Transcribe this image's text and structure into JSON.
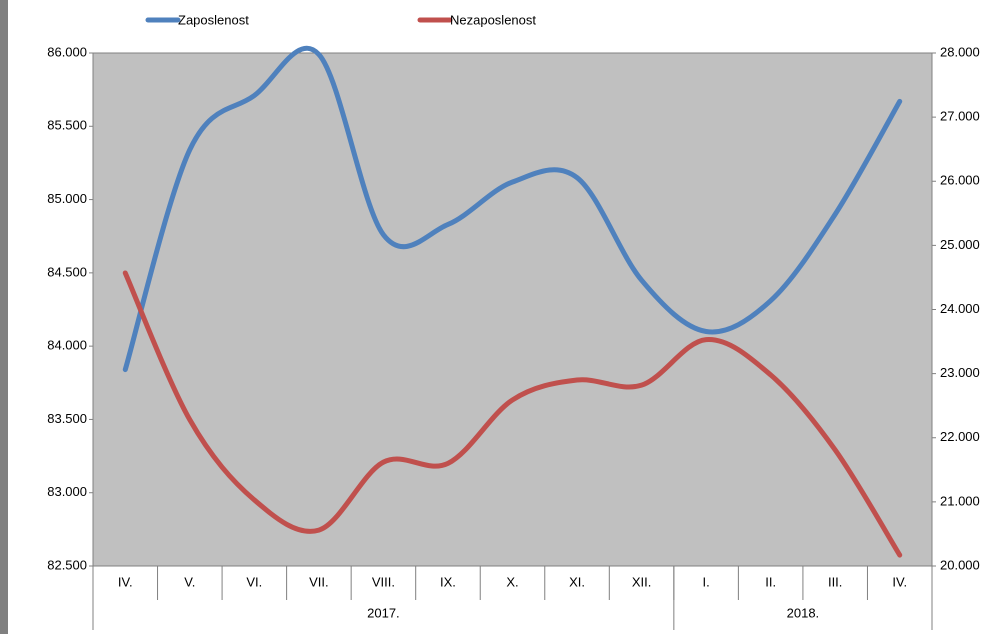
{
  "chart_data": {
    "type": "line",
    "groups": [
      {
        "label": "2017.",
        "categories": [
          "IV.",
          "V.",
          "VI.",
          "VII.",
          "VIII.",
          "IX.",
          "X.",
          "XI.",
          "XII."
        ]
      },
      {
        "label": "2018.",
        "categories": [
          "I.",
          "II.",
          "III.",
          "IV."
        ]
      }
    ],
    "series": [
      {
        "name": "Zaposlenost",
        "color": "#4f81bd",
        "axis": "y",
        "values": [
          83840,
          85340,
          85710,
          85990,
          84760,
          84830,
          85120,
          85150,
          84450,
          84100,
          84310,
          84900,
          85670
        ]
      },
      {
        "name": "Nezaposlenost",
        "color": "#c0504d",
        "axis": "y2",
        "values": [
          24570,
          22280,
          21030,
          20560,
          21620,
          21600,
          22590,
          22900,
          22820,
          23530,
          22980,
          21810,
          20170
        ]
      }
    ],
    "ylim": [
      82500,
      86000
    ],
    "yticks": [
      {
        "value": 82500,
        "label": "82.500"
      },
      {
        "value": 83000,
        "label": "83.000"
      },
      {
        "value": 83500,
        "label": "83.500"
      },
      {
        "value": 84000,
        "label": "84.000"
      },
      {
        "value": 84500,
        "label": "84.500"
      },
      {
        "value": 85000,
        "label": "85.000"
      },
      {
        "value": 85500,
        "label": "85.500"
      },
      {
        "value": 86000,
        "label": "86.000"
      }
    ],
    "y2lim": [
      20000,
      28000
    ],
    "y2ticks": [
      {
        "value": 20000,
        "label": "20.000"
      },
      {
        "value": 21000,
        "label": "21.000"
      },
      {
        "value": 22000,
        "label": "22.000"
      },
      {
        "value": 23000,
        "label": "23.000"
      },
      {
        "value": 24000,
        "label": "24.000"
      },
      {
        "value": 25000,
        "label": "25.000"
      },
      {
        "value": 26000,
        "label": "26.000"
      },
      {
        "value": 27000,
        "label": "27.000"
      },
      {
        "value": 28000,
        "label": "28.000"
      }
    ],
    "smooth": true,
    "legend": "top"
  }
}
